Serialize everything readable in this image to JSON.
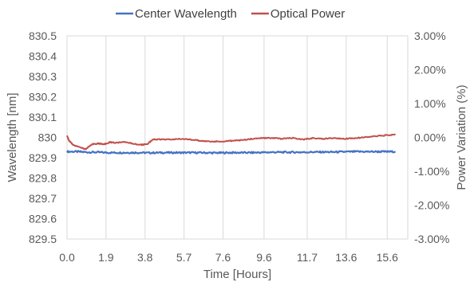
{
  "chart_data": {
    "type": "line",
    "title": "",
    "xlabel": "Time [Hours]",
    "ylabel": "Wavelength [nm]",
    "y2label": "Power Variation (%)",
    "x_tick_labels": [
      "0.0",
      "1.9",
      "3.8",
      "5.7",
      "7.6",
      "9.6",
      "11.7",
      "13.6",
      "15.6"
    ],
    "y_tick_labels": [
      "829.5",
      "829.6",
      "829.7",
      "829.8",
      "829.9",
      "830",
      "830.1",
      "830.2",
      "830.3",
      "830.4",
      "830.5"
    ],
    "y2_tick_labels": [
      "-3.00%",
      "-2.00%",
      "-1.00%",
      "0.00%",
      "1.00%",
      "2.00%",
      "3.00%"
    ],
    "xlim": [
      0,
      16.6
    ],
    "ylim": [
      829.5,
      830.5
    ],
    "y2lim": [
      -3,
      3
    ],
    "grid": "vertical",
    "legend_position": "top",
    "series": [
      {
        "name": "Center Wavelength",
        "axis": "left",
        "color": "#4472C4",
        "x": [
          0.0,
          0.5,
          1.0,
          1.5,
          2.0,
          2.5,
          3.0,
          3.5,
          4.0,
          4.5,
          5.0,
          5.5,
          6.0,
          6.5,
          7.0,
          7.5,
          8.0,
          8.5,
          9.0,
          9.5,
          10.0,
          10.5,
          11.0,
          11.5,
          12.0,
          12.5,
          13.0,
          13.5,
          14.0,
          14.5,
          15.0,
          15.5,
          16.0
        ],
        "y": [
          829.93,
          829.93,
          829.927,
          829.927,
          829.925,
          829.925,
          829.925,
          829.925,
          829.924,
          829.925,
          829.925,
          829.925,
          829.925,
          829.925,
          829.924,
          829.924,
          829.925,
          829.925,
          829.925,
          829.926,
          829.927,
          829.927,
          829.927,
          829.927,
          829.928,
          829.928,
          829.928,
          829.929,
          829.93,
          829.93,
          829.93,
          829.93,
          829.93
        ]
      },
      {
        "name": "Optical Power",
        "axis": "right",
        "color": "#C0504D",
        "x": [
          0.0,
          0.1,
          0.3,
          0.6,
          0.9,
          1.2,
          1.5,
          1.8,
          2.1,
          2.4,
          2.8,
          3.2,
          3.6,
          3.9,
          4.2,
          4.5,
          5.0,
          5.5,
          6.0,
          6.5,
          7.0,
          7.5,
          8.0,
          8.5,
          9.0,
          9.5,
          10.0,
          10.5,
          11.0,
          11.5,
          12.0,
          12.5,
          13.0,
          13.5,
          14.0,
          14.5,
          15.0,
          15.5,
          16.0
        ],
        "y": [
          0.05,
          -0.1,
          -0.22,
          -0.28,
          -0.35,
          -0.2,
          -0.18,
          -0.2,
          -0.14,
          -0.16,
          -0.14,
          -0.18,
          -0.22,
          -0.2,
          -0.06,
          -0.06,
          -0.06,
          -0.04,
          -0.06,
          -0.1,
          -0.12,
          -0.12,
          -0.1,
          -0.08,
          -0.04,
          -0.02,
          -0.02,
          -0.04,
          -0.02,
          -0.06,
          -0.02,
          -0.04,
          -0.02,
          -0.04,
          -0.02,
          0.0,
          0.04,
          0.06,
          0.08
        ]
      }
    ]
  }
}
